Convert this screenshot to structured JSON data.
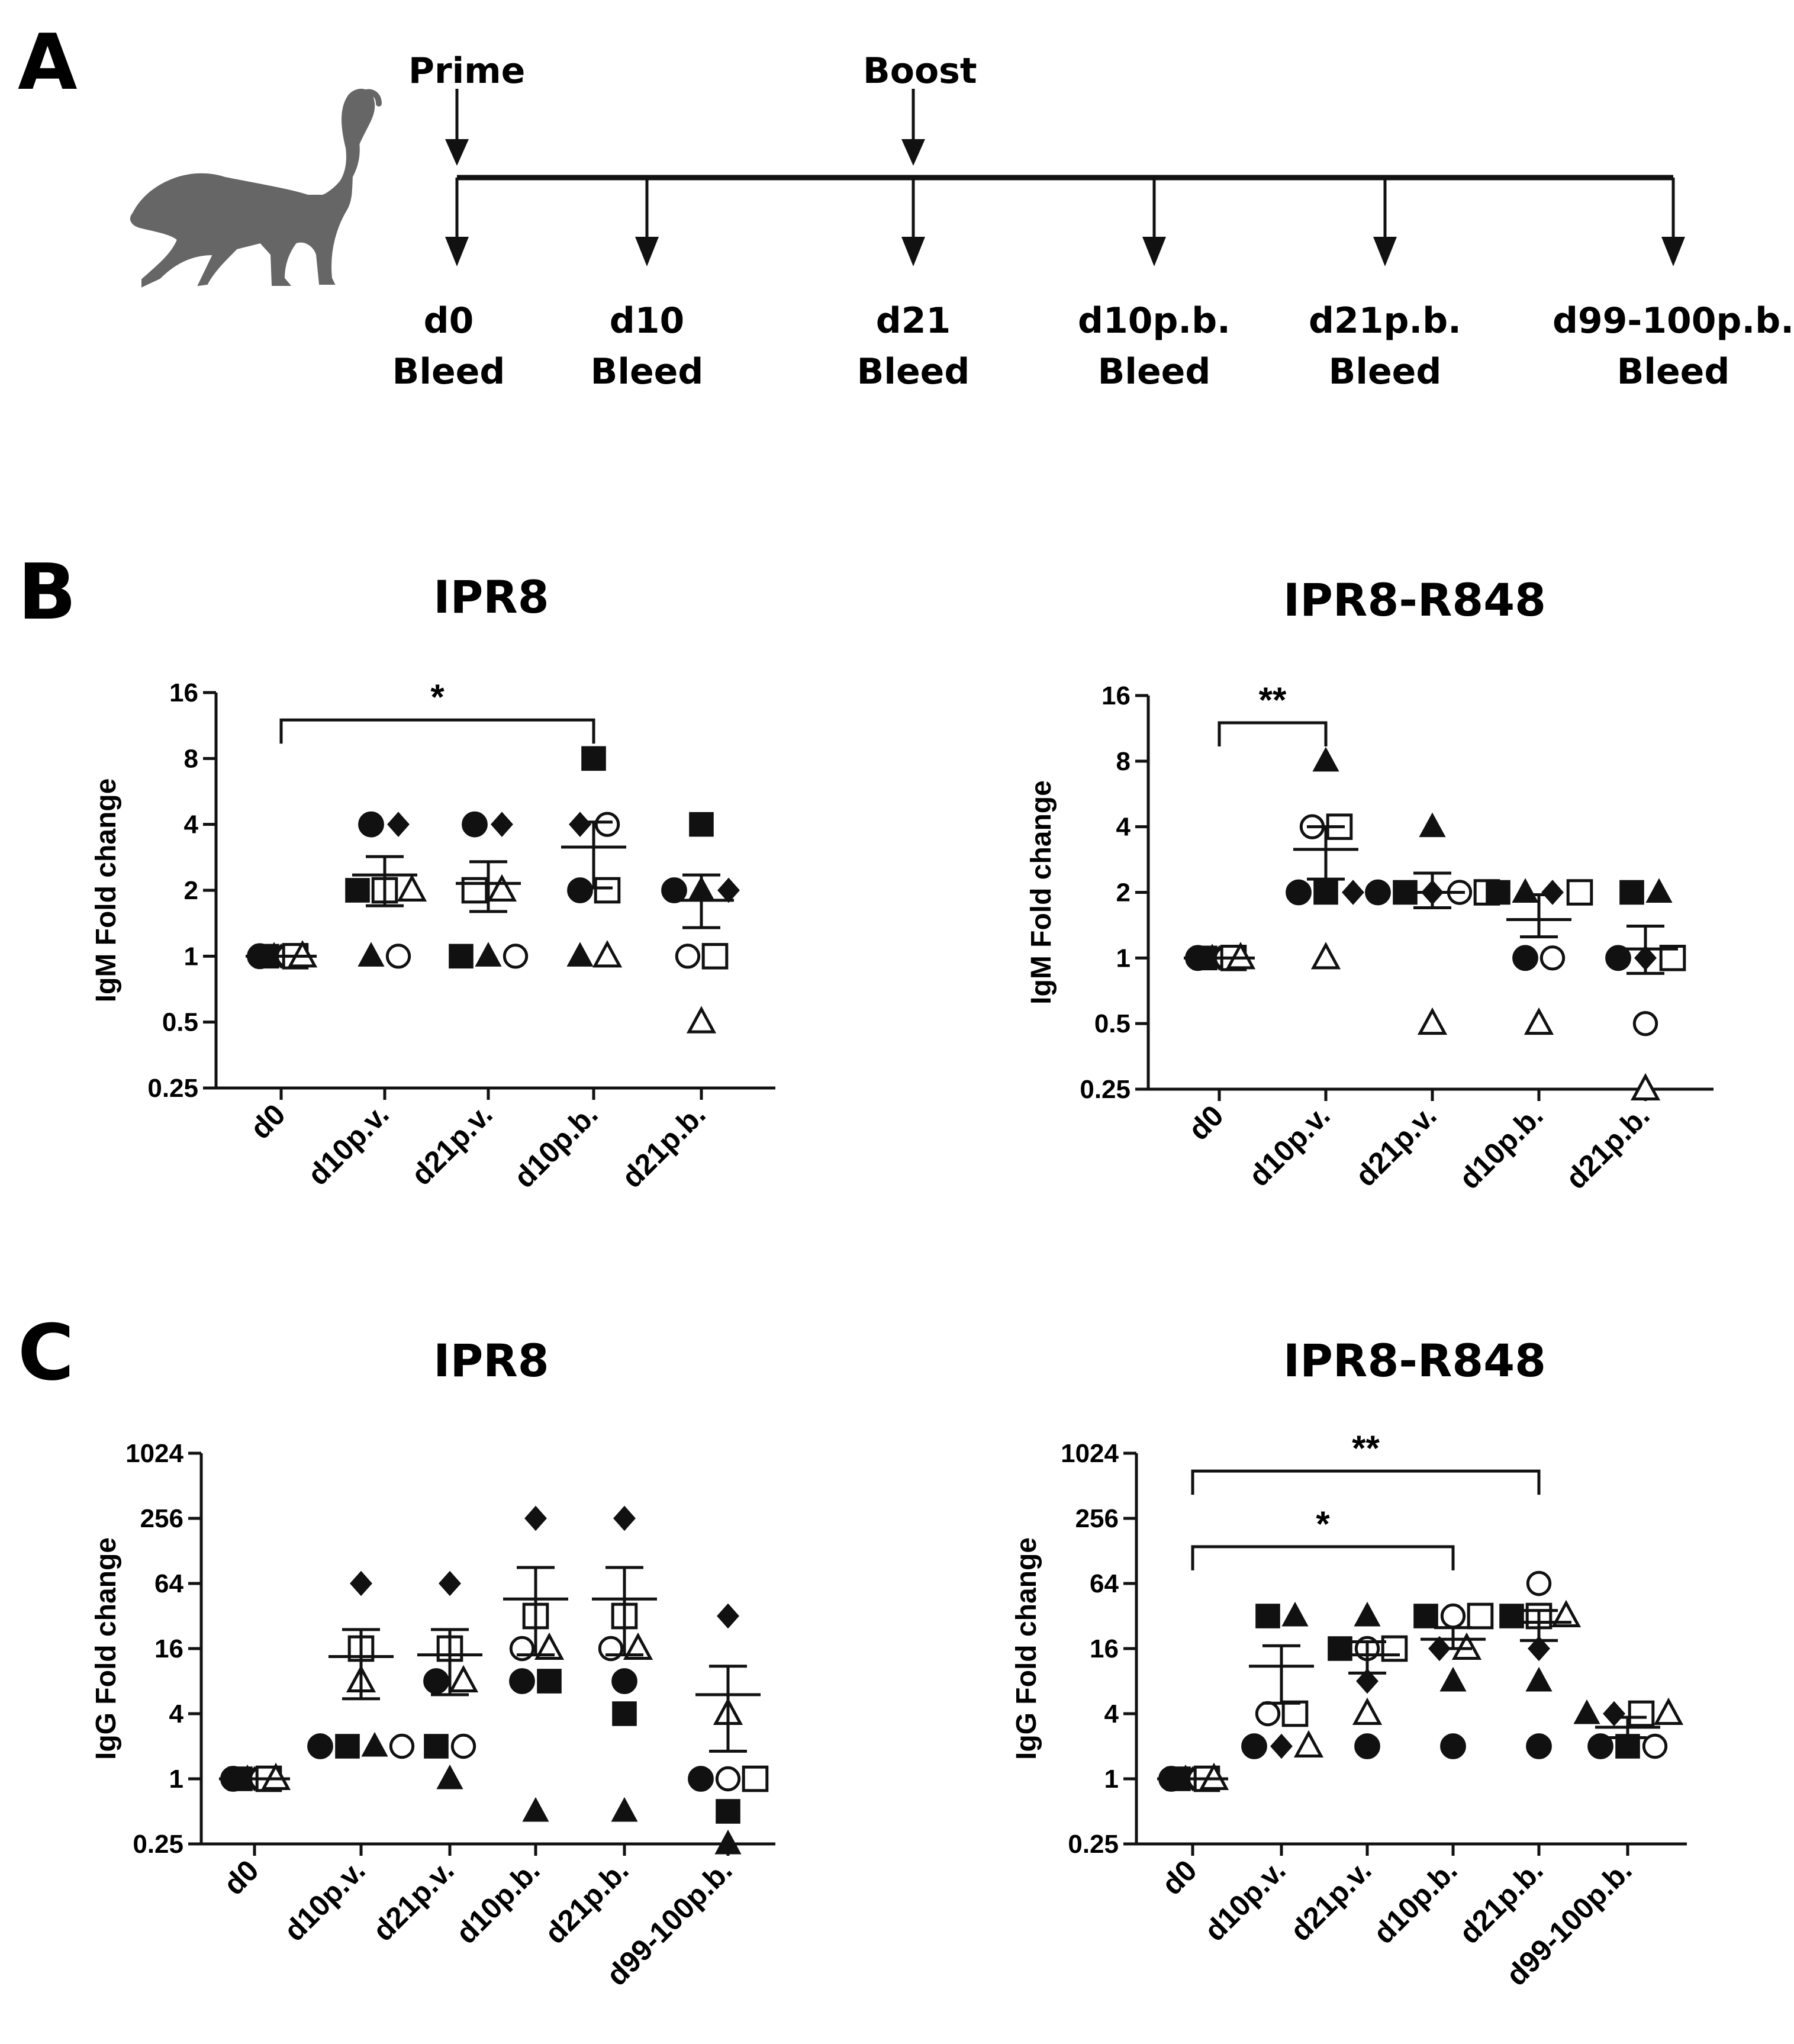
{
  "panel_labels": {
    "a": "A",
    "b": "B",
    "c": "C"
  },
  "timeline": {
    "top_labels": [
      "Prime",
      "Boost"
    ],
    "events": [
      {
        "line1": "d0",
        "line2": "Bleed"
      },
      {
        "line1": "d10",
        "line2": "Bleed"
      },
      {
        "line1": "d21",
        "line2": "Bleed"
      },
      {
        "line1": "d10p.b.",
        "line2": "Bleed"
      },
      {
        "line1": "d21p.b.",
        "line2": "Bleed"
      },
      {
        "line1": "d99-100p.b.",
        "line2": "Bleed"
      }
    ],
    "animal_icon": "monkey-icon"
  },
  "colors": {
    "ink": "#111111",
    "icon": "#666666"
  },
  "chart_data": [
    {
      "panel": "B",
      "type": "scatter",
      "title": "IPR8",
      "ylabel": "IgM Fold change",
      "y_scale": "log2",
      "ylim": [
        0.25,
        16
      ],
      "yticks": [
        "0.25",
        "0.5",
        "1",
        "2",
        "4",
        "8",
        "16"
      ],
      "categories": [
        "d0",
        "d10p.v.",
        "d21p.v.",
        "d10p.b.",
        "d21p.b."
      ],
      "animals": [
        {
          "marker": "filled-circle",
          "values": [
            1,
            4,
            4,
            2,
            2
          ]
        },
        {
          "marker": "filled-square",
          "values": [
            1,
            2,
            1,
            8,
            4
          ]
        },
        {
          "marker": "filled-triangle",
          "values": [
            1,
            1,
            1,
            1,
            2
          ]
        },
        {
          "marker": "filled-diamond",
          "values": [
            1,
            4,
            4,
            4,
            2
          ]
        },
        {
          "marker": "open-circle",
          "values": [
            1,
            1,
            1,
            4,
            1
          ]
        },
        {
          "marker": "open-square",
          "values": [
            1,
            2,
            2,
            2,
            1
          ]
        },
        {
          "marker": "open-triangle",
          "values": [
            1,
            2,
            2,
            1,
            0.5
          ]
        }
      ],
      "means": [
        1,
        2.35,
        2.15,
        3.15,
        1.8
      ],
      "sem_low": [
        1,
        1.7,
        1.6,
        2.05,
        1.35
      ],
      "sem_high": [
        1,
        2.85,
        2.7,
        4.1,
        2.35
      ],
      "significance": [
        {
          "from": "d0",
          "to": "d10p.b.",
          "label": "*",
          "y": 12
        }
      ]
    },
    {
      "panel": "B",
      "type": "scatter",
      "title": "IPR8-R848",
      "ylabel": "IgM Fold change",
      "y_scale": "log2",
      "ylim": [
        0.25,
        16
      ],
      "yticks": [
        "0.25",
        "0.5",
        "1",
        "2",
        "4",
        "8",
        "16"
      ],
      "categories": [
        "d0",
        "d10p.v.",
        "d21p.v.",
        "d10p.b.",
        "d21p.b."
      ],
      "animals": [
        {
          "marker": "filled-circle",
          "values": [
            1,
            2,
            2,
            1,
            1
          ]
        },
        {
          "marker": "filled-square",
          "values": [
            1,
            2,
            2,
            2,
            2
          ]
        },
        {
          "marker": "filled-triangle",
          "values": [
            1,
            8,
            4,
            2,
            2
          ]
        },
        {
          "marker": "filled-diamond",
          "values": [
            1,
            2,
            2,
            2,
            1
          ]
        },
        {
          "marker": "open-circle",
          "values": [
            1,
            4,
            2,
            1,
            0.5
          ]
        },
        {
          "marker": "open-square",
          "values": [
            1,
            4,
            2,
            2,
            1
          ]
        },
        {
          "marker": "open-triangle",
          "values": [
            1,
            1,
            0.5,
            0.5,
            0.25
          ]
        }
      ],
      "means": [
        1,
        3.15,
        2.0,
        1.5,
        1.1
      ],
      "sem_low": [
        1,
        2.3,
        1.7,
        1.25,
        0.85
      ],
      "sem_high": [
        1,
        4.0,
        2.45,
        1.95,
        1.4
      ],
      "significance": [
        {
          "from": "d0",
          "to": "d10p.v.",
          "label": "**",
          "y": 12
        }
      ]
    },
    {
      "panel": "C",
      "type": "scatter",
      "title": "IPR8",
      "ylabel": "IgG Fold change",
      "y_scale": "log2",
      "ylim": [
        0.25,
        1024
      ],
      "yticks": [
        "0.25",
        "1",
        "4",
        "16",
        "64",
        "256",
        "1024"
      ],
      "categories": [
        "d0",
        "d10p.v.",
        "d21p.v.",
        "d10p.b.",
        "d21p.b.",
        "d99-100p.b."
      ],
      "animals": [
        {
          "marker": "filled-circle",
          "values": [
            1,
            2,
            8,
            8,
            8,
            1
          ]
        },
        {
          "marker": "filled-square",
          "values": [
            1,
            2,
            2,
            8,
            4,
            0.5
          ]
        },
        {
          "marker": "filled-triangle",
          "values": [
            1,
            2,
            1,
            0.5,
            0.5,
            0.25
          ]
        },
        {
          "marker": "filled-diamond",
          "values": [
            1,
            64,
            64,
            256,
            256,
            32
          ]
        },
        {
          "marker": "open-circle",
          "values": [
            1,
            2,
            2,
            16,
            16,
            1
          ]
        },
        {
          "marker": "open-square",
          "values": [
            1,
            16,
            16,
            32,
            32,
            1
          ]
        },
        {
          "marker": "open-triangle",
          "values": [
            1,
            8,
            8,
            16,
            16,
            4
          ]
        }
      ],
      "means": [
        1,
        13.5,
        14,
        46,
        46,
        6
      ],
      "sem_low": [
        1,
        5.5,
        6,
        14,
        14,
        1.8
      ],
      "sem_high": [
        1,
        24,
        24,
        90,
        90,
        11
      ],
      "significance": []
    },
    {
      "panel": "C",
      "type": "scatter",
      "title": "IPR8-R848",
      "ylabel": "IgG Fold change",
      "y_scale": "log2",
      "ylim": [
        0.25,
        1024
      ],
      "yticks": [
        "0.25",
        "1",
        "4",
        "16",
        "64",
        "256",
        "1024"
      ],
      "categories": [
        "d0",
        "d10p.v.",
        "d21p.v.",
        "d10p.b.",
        "d21p.b.",
        "d99-100p.b."
      ],
      "animals": [
        {
          "marker": "filled-circle",
          "values": [
            1,
            2,
            2,
            2,
            2,
            2
          ]
        },
        {
          "marker": "filled-square",
          "values": [
            1,
            32,
            16,
            32,
            32,
            2
          ]
        },
        {
          "marker": "filled-triangle",
          "values": [
            1,
            32,
            32,
            8,
            8,
            4
          ]
        },
        {
          "marker": "filled-diamond",
          "values": [
            1,
            2,
            8,
            16,
            16,
            4
          ]
        },
        {
          "marker": "open-circle",
          "values": [
            1,
            4,
            16,
            32,
            64,
            2
          ]
        },
        {
          "marker": "open-square",
          "values": [
            1,
            4,
            16,
            32,
            32,
            4
          ]
        },
        {
          "marker": "open-triangle",
          "values": [
            1,
            2,
            4,
            16,
            32,
            4
          ]
        }
      ],
      "means": [
        1,
        11,
        14,
        19.5,
        28,
        3
      ],
      "sem_low": [
        1,
        5,
        9.5,
        16,
        19,
        2.4
      ],
      "sem_high": [
        1,
        17,
        18.5,
        25,
        36,
        3.7
      ],
      "significance": [
        {
          "from": "d0",
          "to": "d10p.b.",
          "label": "*",
          "y": 140
        },
        {
          "from": "d0",
          "to": "d21p.b.",
          "label": "**",
          "y": 700
        }
      ]
    }
  ]
}
